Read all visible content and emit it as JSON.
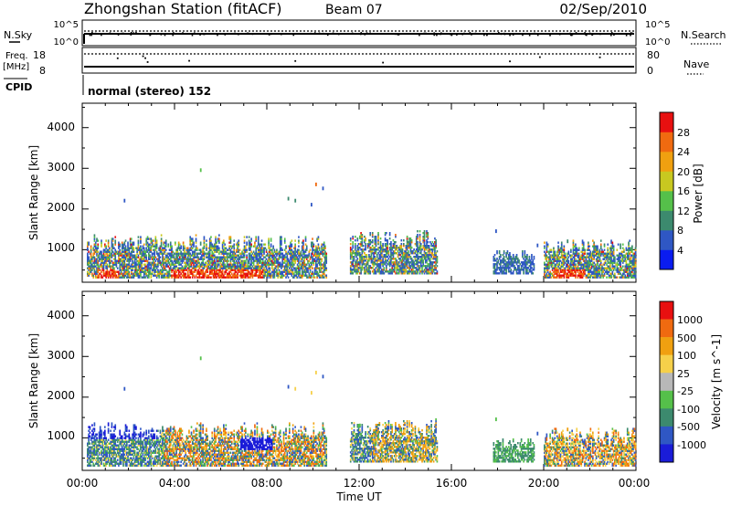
{
  "header": {
    "station": "Zhongshan Station (fitACF)",
    "beam": "Beam 07",
    "date": "02/Sep/2010"
  },
  "strips": {
    "nsky_label": "N.Sky",
    "nsky_ticks": [
      "10^5",
      "10^0"
    ],
    "nsearch_label": "N.Search",
    "nsearch_ticks": [
      "10^5",
      "10^0"
    ],
    "freq_label_1": "Freq.",
    "freq_label_2": "[MHz]",
    "freq_ticks": [
      "18",
      "8"
    ],
    "nave_label": "Nave",
    "nave_ticks": [
      "80",
      "0"
    ],
    "cpid_label": "CPID",
    "cpid_value": "normal (stereo) 152"
  },
  "x_axis": {
    "label": "Time UT",
    "ticks": [
      "00:00",
      "04:00",
      "08:00",
      "12:00",
      "16:00",
      "20:00",
      "00:00"
    ]
  },
  "colors": {
    "power": [
      "#0a1cf0",
      "#2f57c4",
      "#3c8a6e",
      "#55c04a",
      "#c8c820",
      "#f0a010",
      "#f06a10",
      "#e81010"
    ],
    "velocity": [
      "#e81010",
      "#f06a10",
      "#f0a010",
      "#f6d04a",
      "#b8b8b8",
      "#55c04a",
      "#3c8a6e",
      "#2f57c4",
      "#1a1cd8"
    ]
  },
  "chart_data": [
    {
      "type": "heatmap",
      "quantity": "Power",
      "ylabel": "Slant Range [km]",
      "xlabel": "",
      "xlim": [
        0,
        24
      ],
      "ylim": [
        200,
        4600
      ],
      "yticks": [
        "1000",
        "2000",
        "3000",
        "4000"
      ],
      "colorbar": {
        "label": "Power [dB]",
        "ticks": [
          "4",
          "8",
          "12",
          "16",
          "20",
          "24",
          "28"
        ],
        "range": [
          0,
          32
        ]
      },
      "regions": [
        {
          "t": [
            0.2,
            10.6
          ],
          "r": [
            300,
            1350
          ],
          "level": "mixed"
        },
        {
          "t": [
            11.6,
            15.4
          ],
          "r": [
            400,
            1450
          ],
          "level": "mixed"
        },
        {
          "t": [
            17.8,
            19.6
          ],
          "r": [
            400,
            1000
          ],
          "level": "low"
        },
        {
          "t": [
            20.0,
            24.0
          ],
          "r": [
            300,
            1250
          ],
          "level": "mixed"
        }
      ]
    },
    {
      "type": "heatmap",
      "quantity": "Velocity",
      "ylabel": "Slant Range [km]",
      "xlabel": "Time UT",
      "xlim": [
        0,
        24
      ],
      "ylim": [
        200,
        4600
      ],
      "yticks": [
        "1000",
        "2000",
        "3000",
        "4000"
      ],
      "colorbar": {
        "label": "Velocity [m s^-1]",
        "ticks": [
          "1000",
          "500",
          "100",
          "25",
          "-25",
          "-100",
          "-500",
          "-1000"
        ],
        "range": [
          -1000,
          1000
        ]
      },
      "regions": [
        {
          "t": [
            0.2,
            10.6
          ],
          "r": [
            300,
            1350
          ],
          "level": "mixed"
        },
        {
          "t": [
            11.6,
            15.4
          ],
          "r": [
            400,
            1450
          ],
          "level": "mixed"
        },
        {
          "t": [
            17.8,
            19.6
          ],
          "r": [
            400,
            1000
          ],
          "level": "low"
        },
        {
          "t": [
            20.0,
            24.0
          ],
          "r": [
            300,
            1250
          ],
          "level": "mixed"
        }
      ]
    }
  ]
}
